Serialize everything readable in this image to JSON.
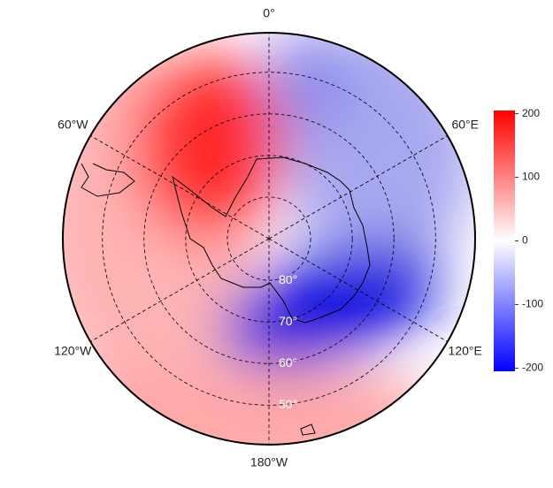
{
  "map": {
    "lon_ticks": [
      {
        "value": 0,
        "label": "0°"
      },
      {
        "value": 60,
        "label": "60°E"
      },
      {
        "value": 120,
        "label": "120°E"
      },
      {
        "value": 180,
        "label": "180°W"
      },
      {
        "value": -120,
        "label": "120°W"
      },
      {
        "value": -60,
        "label": "60°W"
      }
    ],
    "lat_lim": [
      90,
      40.5
    ],
    "lat_ticks": [
      {
        "value": 80,
        "label": "80°"
      },
      {
        "value": 70,
        "label": "70°"
      },
      {
        "value": 60,
        "label": "60°"
      },
      {
        "value": 50,
        "label": "50°"
      }
    ],
    "colorbar": {
      "lim": [
        -205,
        205
      ],
      "ticks": [
        200,
        100,
        0,
        -100,
        -200
      ],
      "colors": [
        "#0000ff",
        "#ffffff",
        "#ff0000"
      ]
    }
  }
}
